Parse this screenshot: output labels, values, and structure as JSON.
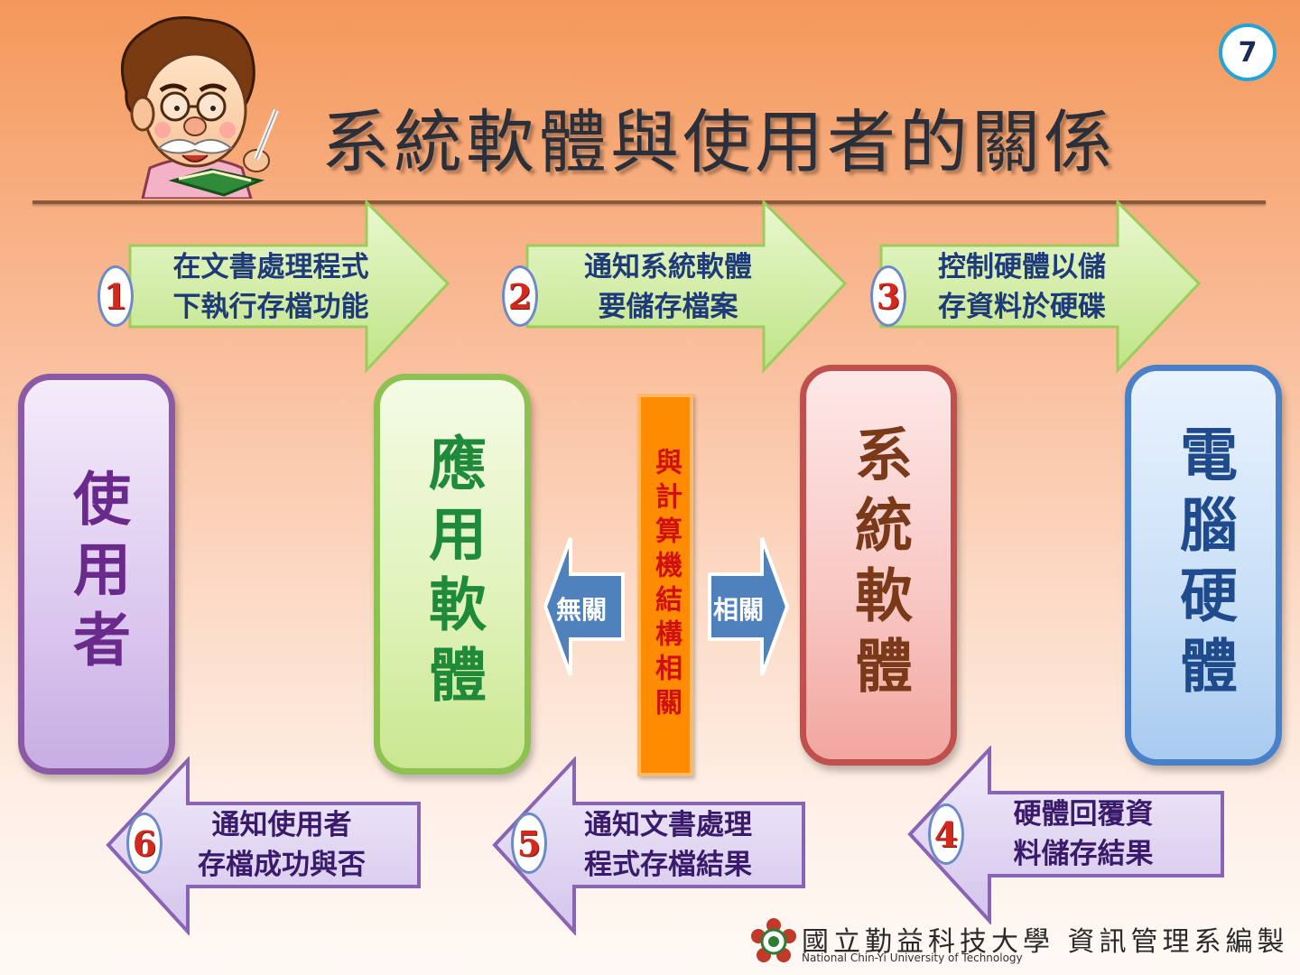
{
  "page_number": "7",
  "title": "系統軟體與使用者的關係",
  "steps": [
    {
      "num": "1",
      "line1": "在文書處理程式",
      "line2": "下執行存檔功能"
    },
    {
      "num": "2",
      "line1": "通知系統軟體",
      "line2": "要儲存檔案"
    },
    {
      "num": "3",
      "line1": "控制硬體以儲",
      "line2": "存資料於硬碟"
    },
    {
      "num": "4",
      "line1": "硬體回覆資",
      "line2": "料儲存結果"
    },
    {
      "num": "5",
      "line1": "通知文書處理",
      "line2": "程式存檔結果"
    },
    {
      "num": "6",
      "line1": "通知使用者",
      "line2": "存檔成功與否"
    }
  ],
  "entities": {
    "user": "使用者",
    "application": "應用軟體",
    "system": "系統軟體",
    "hardware": "電腦硬體"
  },
  "center_label": "與計算機結構相關",
  "unrelated_label": "無關",
  "related_label": "相關",
  "footer": {
    "institution": "國立勤益科技大學 資訊管理系編製",
    "english": "National Chin-Yi University of Technology"
  },
  "colors": {
    "title_rule": "#8a5a3a",
    "green_arrow": "#c8ec96",
    "purple_arrow": "#ddd0f0",
    "center_column": "#ff8c00",
    "side_arrow": "#4f81bd"
  }
}
